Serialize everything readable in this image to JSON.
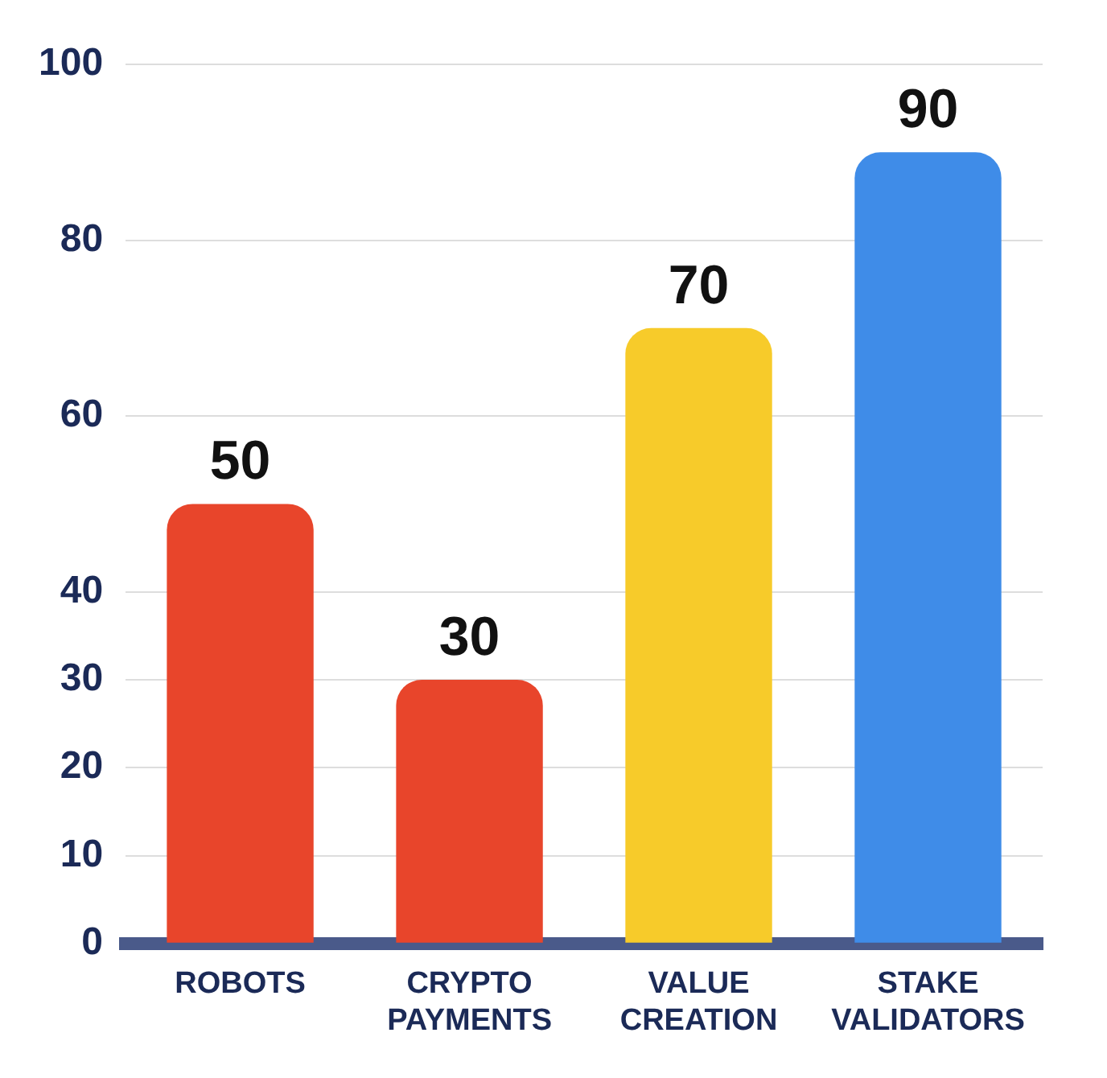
{
  "chart_data": {
    "type": "bar",
    "categories": [
      "ROBOTS",
      "CRYPTO PAYMENTS",
      "VALUE CREATION",
      "STAKE VALIDATORS"
    ],
    "values": [
      50,
      30,
      70,
      90
    ],
    "colors": [
      "#e8452b",
      "#e8452b",
      "#f7cb2a",
      "#3f8ce8"
    ],
    "data_labels": true,
    "ylim": [
      0,
      100
    ],
    "yticks": [
      0,
      10,
      20,
      30,
      40,
      60,
      80,
      100
    ],
    "grid": "y"
  }
}
